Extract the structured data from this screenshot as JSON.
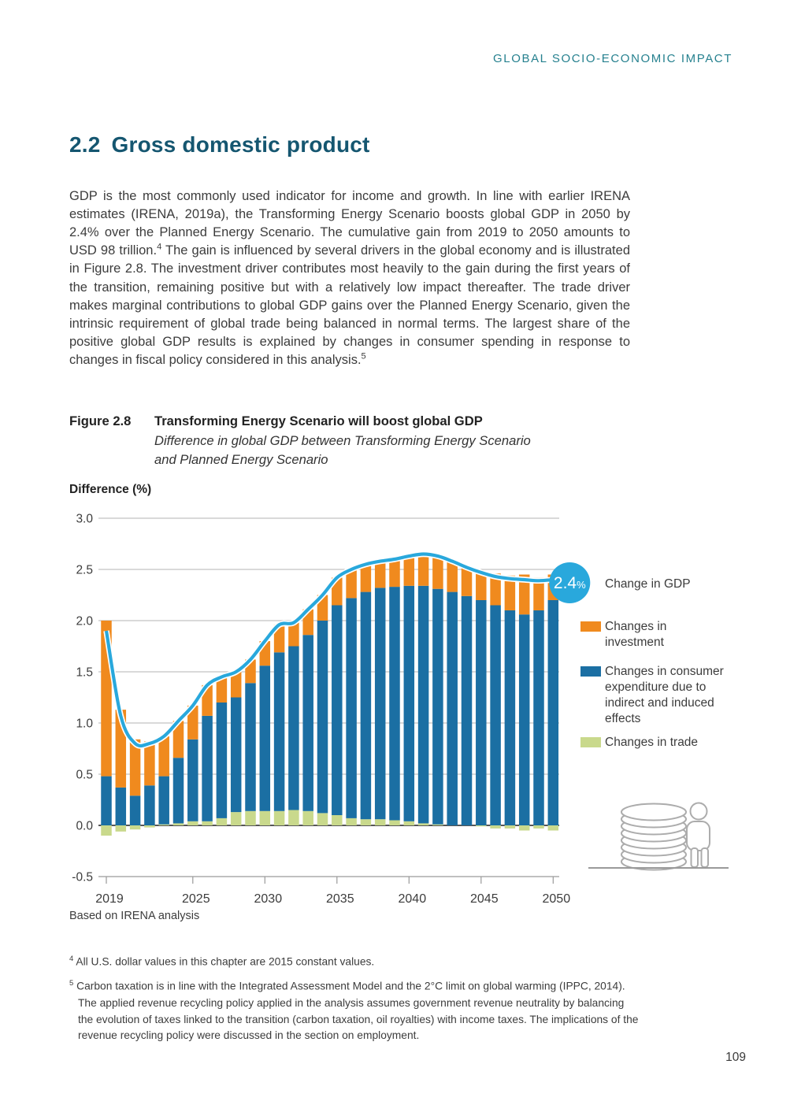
{
  "page": {
    "header": "GLOBAL SOCIO-ECONOMIC IMPACT",
    "number": "109"
  },
  "section": {
    "number": "2.2",
    "title": "Gross domestic product"
  },
  "paragraph": {
    "part1": "GDP is the most commonly used indicator for income and growth. In line with earlier IRENA estimates (IRENA, 2019a), the Transforming Energy Scenario boosts global GDP in 2050 by 2.4% over the Planned Energy Scenario. The cumulative gain from 2019 to 2050 amounts to USD 98 trillion.",
    "ref1": "4",
    "part2": " The gain is influenced by several drivers in the global economy and is illustrated in Figure 2.8. The investment driver contributes most heavily to the gain during the first years of the transition, remaining positive but with a relatively low impact thereafter. The trade driver makes marginal contributions to global GDP gains over the Planned Energy Scenario, given the intrinsic requirement of global trade being balanced in normal terms. The largest share of the positive global GDP results is explained by changes in consumer spending in response to changes in fiscal policy considered in this analysis.",
    "ref2": "5"
  },
  "figure": {
    "label": "Figure 2.8",
    "title": "Transforming Energy Scenario will boost global GDP",
    "subtitle": "Difference in global GDP between Transforming Energy Scenario\nand Planned Energy Scenario",
    "axis_title": "Difference (%)",
    "source": "Based on IRENA analysis",
    "callout": {
      "value": "2.4",
      "unit": "%"
    }
  },
  "legend": {
    "items": [
      {
        "key": "gdp-line",
        "label": "Change in GDP",
        "color": "#29a8dc"
      },
      {
        "key": "investment",
        "label": "Changes in\ninvestment",
        "color": "#f08a1e"
      },
      {
        "key": "consumer",
        "label": "Changes in consumer\nexpenditure due to\nindirect and induced\neffects",
        "color": "#1b6fa3"
      },
      {
        "key": "trade",
        "label": "Changes in trade",
        "color": "#c9d98c"
      }
    ]
  },
  "chart_data": {
    "type": "bar",
    "subtype": "stacked-bars-with-line",
    "title": "Difference in global GDP between Transforming Energy Scenario and Planned Energy Scenario",
    "ylabel": "Difference (%)",
    "ylim": [
      -0.5,
      3.0
    ],
    "ytick_step": 0.5,
    "grid": true,
    "legend_position": "right",
    "x": [
      2019,
      2020,
      2021,
      2022,
      2023,
      2024,
      2025,
      2026,
      2027,
      2028,
      2029,
      2030,
      2031,
      2032,
      2033,
      2034,
      2035,
      2036,
      2037,
      2038,
      2039,
      2040,
      2041,
      2042,
      2043,
      2044,
      2045,
      2046,
      2047,
      2048,
      2049,
      2050
    ],
    "xticks": [
      2019,
      2025,
      2030,
      2035,
      2040,
      2045,
      2050
    ],
    "series": [
      {
        "name": "Changes in investment",
        "type": "bar",
        "color": "#f08a1e",
        "values": [
          1.52,
          0.76,
          0.55,
          0.43,
          0.39,
          0.36,
          0.33,
          0.3,
          0.25,
          0.25,
          0.23,
          0.24,
          0.27,
          0.23,
          0.25,
          0.25,
          0.27,
          0.28,
          0.27,
          0.26,
          0.27,
          0.29,
          0.31,
          0.32,
          0.3,
          0.28,
          0.28,
          0.31,
          0.34,
          0.39,
          0.32,
          0.25
        ]
      },
      {
        "name": "Changes in consumer expenditure due to indirect and induced effects",
        "type": "bar",
        "color": "#1b6fa3",
        "values": [
          0.48,
          0.37,
          0.29,
          0.39,
          0.47,
          0.64,
          0.8,
          1.03,
          1.13,
          1.12,
          1.25,
          1.42,
          1.55,
          1.6,
          1.72,
          1.88,
          2.05,
          2.15,
          2.22,
          2.26,
          2.28,
          2.3,
          2.32,
          2.3,
          2.28,
          2.24,
          2.2,
          2.15,
          2.1,
          2.06,
          2.1,
          2.2
        ]
      },
      {
        "name": "Changes in trade",
        "type": "bar",
        "color": "#c9d98c",
        "values": [
          -0.1,
          -0.06,
          -0.04,
          -0.02,
          0.01,
          0.02,
          0.04,
          0.04,
          0.07,
          0.13,
          0.14,
          0.14,
          0.14,
          0.15,
          0.14,
          0.12,
          0.1,
          0.07,
          0.06,
          0.06,
          0.05,
          0.04,
          0.02,
          0.01,
          0.0,
          0.0,
          -0.01,
          -0.03,
          -0.03,
          -0.05,
          -0.03,
          -0.05
        ]
      },
      {
        "name": "Change in GDP",
        "type": "line",
        "color": "#29a8dc",
        "values": [
          1.9,
          1.07,
          0.8,
          0.8,
          0.87,
          1.02,
          1.17,
          1.37,
          1.45,
          1.5,
          1.62,
          1.8,
          1.96,
          1.98,
          2.11,
          2.25,
          2.42,
          2.5,
          2.55,
          2.58,
          2.6,
          2.63,
          2.65,
          2.63,
          2.58,
          2.52,
          2.47,
          2.43,
          2.41,
          2.4,
          2.39,
          2.4
        ]
      }
    ],
    "annotation": {
      "text": "2.4%",
      "x": 2050,
      "y": 2.4
    }
  },
  "footnotes": [
    {
      "marker": "4",
      "text": "All U.S. dollar values in this chapter are 2015 constant values."
    },
    {
      "marker": "5",
      "text": "Carbon taxation is in line with the Integrated Assessment Model and the 2°C limit on global warming (IPPC, 2014). The applied revenue recycling policy applied in the analysis assumes government revenue neutrality by balancing the evolution of taxes linked to the transition (carbon taxation, oil royalties) with income taxes. The implications of the revenue recycling policy were discussed in the section on employment."
    }
  ],
  "colors": {
    "accent_teal": "#26818f",
    "heading_teal": "#155670",
    "bar_orange": "#f08a1e",
    "bar_blue": "#1b6fa3",
    "bar_green": "#c9d98c",
    "line_cyan": "#29a8dc",
    "gridline": "#b3b3b3",
    "zero_line": "#3f3f3f",
    "text": "#3c3c3c"
  }
}
